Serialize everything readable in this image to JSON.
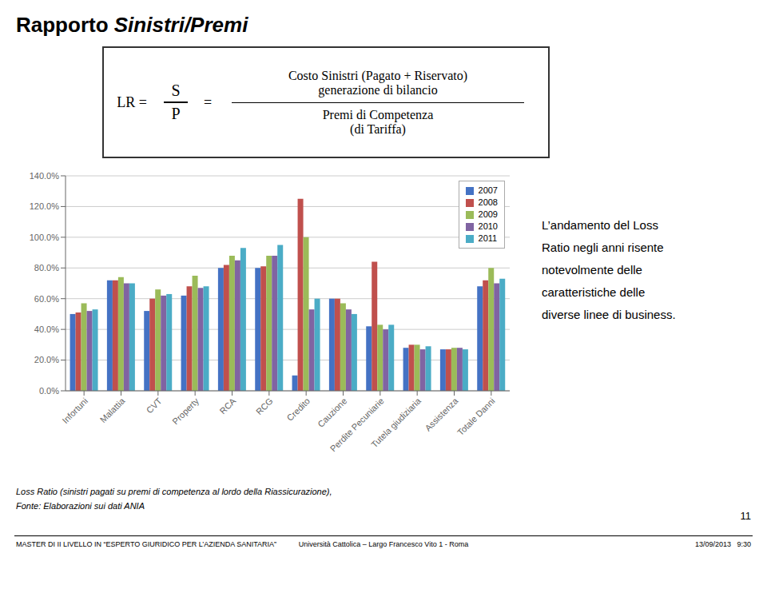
{
  "chart_data": {
    "type": "bar",
    "title": "Rapporto Sinistri/Premi",
    "categories": [
      "Infortuni",
      "Malattia",
      "CVT",
      "Property",
      "RCA",
      "RCG",
      "Credito",
      "Cauzione",
      "Perdite Pecuniarie",
      "Tutela giudiziaria",
      "Assistenza",
      "Totale Danni"
    ],
    "series": [
      {
        "name": "2007",
        "color": "#4472C4",
        "values": [
          0.5,
          0.72,
          0.52,
          0.62,
          0.8,
          0.8,
          0.1,
          0.6,
          0.42,
          0.28,
          0.27,
          0.68
        ]
      },
      {
        "name": "2008",
        "color": "#C0504D",
        "values": [
          0.51,
          0.72,
          0.6,
          0.68,
          0.82,
          0.81,
          1.25,
          0.6,
          0.84,
          0.3,
          0.27,
          0.72
        ]
      },
      {
        "name": "2009",
        "color": "#9BBB59",
        "values": [
          0.57,
          0.74,
          0.66,
          0.75,
          0.88,
          0.88,
          1.0,
          0.57,
          0.43,
          0.3,
          0.28,
          0.8
        ]
      },
      {
        "name": "2010",
        "color": "#8064A2",
        "values": [
          0.52,
          0.7,
          0.62,
          0.67,
          0.85,
          0.88,
          0.53,
          0.53,
          0.4,
          0.27,
          0.28,
          0.7
        ]
      },
      {
        "name": "2011",
        "color": "#4BACC6",
        "values": [
          0.53,
          0.7,
          0.63,
          0.68,
          0.93,
          0.95,
          0.6,
          0.5,
          0.43,
          0.29,
          0.27,
          0.73
        ]
      }
    ],
    "ylim": [
      0,
      1.4
    ],
    "yticks": [
      {
        "value": 0.0,
        "label": "0.0%"
      },
      {
        "value": 0.2,
        "label": "20.0%"
      },
      {
        "value": 0.4,
        "label": "40.0%"
      },
      {
        "value": 0.6,
        "label": "60.0%"
      },
      {
        "value": 0.8,
        "label": "80.0%"
      },
      {
        "value": 1.0,
        "label": "100.0%"
      },
      {
        "value": 1.2,
        "label": "120.0%"
      },
      {
        "value": 1.4,
        "label": "140.0%"
      }
    ],
    "grid": true,
    "legend": "upper right",
    "annotations": [
      "LR =",
      "S",
      "P",
      "=",
      "Costo Sinistri (Pagato + Riservato)",
      "generazione di bilancio",
      "Premi di Competenza",
      "(di Tariffa)",
      "L’andamento del Loss",
      "Ratio negli anni risente",
      "notevolmente delle",
      "caratteristiche delle",
      "diverse linee di business.",
      "Loss Ratio (sinistri pagati su premi di competenza al lordo della Riassicurazione),",
      "Fonte: Elaborazioni sui dati ANIA",
      "11",
      "MASTER DI II LIVELLO IN “ESPERTO GIURIDICO PER L’AZIENDA SANITARIA”",
      "Università Cattolica – Largo Francesco Vito 1 - Roma",
      "13/09/2013   9:30"
    ]
  }
}
